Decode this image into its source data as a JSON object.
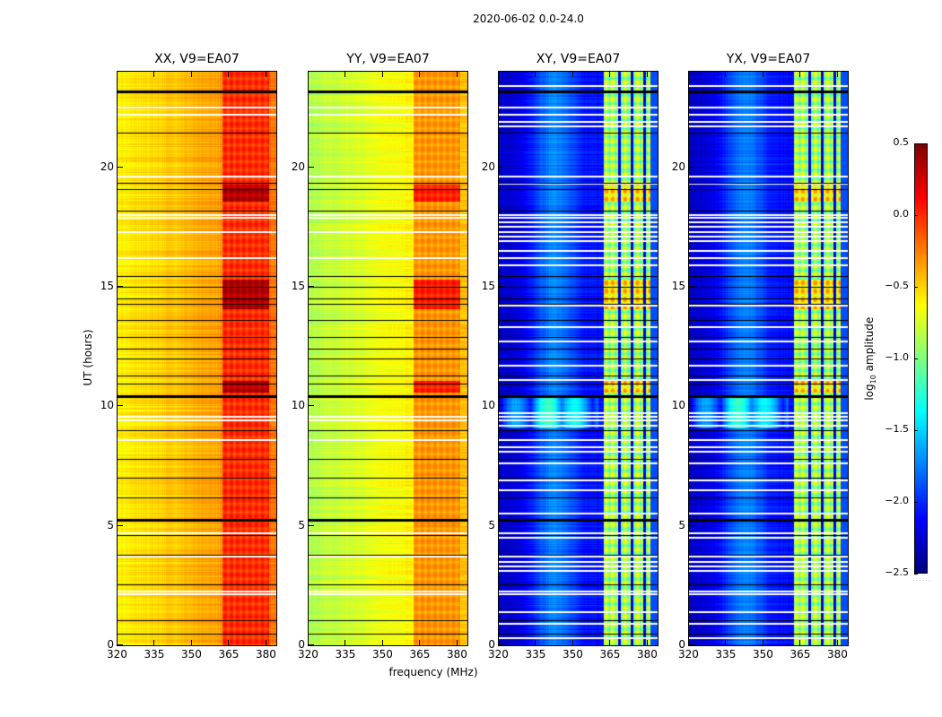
{
  "chart_data": {
    "type": "heatmap",
    "title": "2020-06-02 0.0-24.0",
    "xlabel": "frequency (MHz)",
    "ylabel": "UT (hours)",
    "xlim": [
      320,
      384
    ],
    "ylim": [
      0,
      24
    ],
    "x_ticks": [
      "320",
      "335",
      "350",
      "365",
      "380"
    ],
    "x_tick_values": [
      320,
      335,
      350,
      365,
      380
    ],
    "y_ticks": [
      "0",
      "5",
      "10",
      "15",
      "20"
    ],
    "y_tick_values": [
      0,
      5,
      10,
      15,
      20
    ],
    "colormap": "jet",
    "colorbar": {
      "label_prefix": "log",
      "label_sub": "10",
      "label_suffix": " amplitude",
      "range": [
        -2.5,
        0.5
      ],
      "ticks": [
        "0.5",
        "0.0",
        "−0.5",
        "−1.0",
        "−1.5",
        "−2.0",
        "−2.5"
      ],
      "tick_values": [
        0.5,
        0.0,
        -0.5,
        -1.0,
        -1.5,
        -2.0,
        -2.5
      ],
      "footer": "......"
    },
    "panels": [
      {
        "title": "XX, V9=EA07",
        "base_low": -0.6,
        "base_high": -0.35,
        "rfi_band": [
          362,
          381
        ],
        "rfi_level": -0.05,
        "rfi_var": 0.3,
        "bump": 0
      },
      {
        "title": "YY, V9=EA07",
        "base_low": -0.85,
        "base_high": -0.6,
        "rfi_band": [
          362,
          381
        ],
        "rfi_level": -0.35,
        "rfi_var": 0.25,
        "bump": 0
      },
      {
        "title": "XY, V9=EA07",
        "base_low": -2.3,
        "base_high": -2.1,
        "rfi_band": [
          362,
          381
        ],
        "rfi_level": -1.0,
        "rfi_var": 0.8,
        "bump": 0.45
      },
      {
        "title": "YX, V9=EA07",
        "base_low": -2.3,
        "base_high": -2.1,
        "rfi_band": [
          362,
          381
        ],
        "rfi_level": -1.0,
        "rfi_var": 0.8,
        "bump": 0.45
      }
    ],
    "flagged_hours": [
      22.5,
      22.2,
      19.6,
      18.0,
      17.9,
      17.3,
      16.2,
      9.55,
      9.4,
      8.6,
      4.7,
      3.7,
      2.25,
      2.15
    ],
    "cross_extra_flagged_hours": [
      23.4,
      21.9,
      21.7,
      19.3,
      17.7,
      17.5,
      17.1,
      16.9,
      16.5,
      15.9,
      14.2,
      13.3,
      12.7,
      11.7,
      11.1,
      9.7,
      9.2,
      8.3,
      8.1,
      7.6,
      6.9,
      6.5,
      5.5,
      4.5,
      3.5,
      3.3,
      3.1,
      1.4,
      0.9,
      0.3
    ],
    "black_line_hours": [
      23.2,
      21.45,
      19.35,
      19.1,
      18.2,
      15.45,
      15.0,
      14.5,
      14.3,
      13.6,
      12.9,
      12.4,
      12.0,
      11.3,
      10.95,
      10.45,
      9.0,
      7.8,
      7.0,
      6.2,
      5.3,
      4.6,
      3.8,
      2.55,
      1.05,
      0.5
    ],
    "thick_black_line_hours": [
      23.2,
      10.45,
      5.3
    ],
    "strong_rfi_hours": [
      [
        14.1,
        15.3
      ],
      [
        10.6,
        11.1
      ],
      [
        18.6,
        19.3
      ]
    ]
  }
}
